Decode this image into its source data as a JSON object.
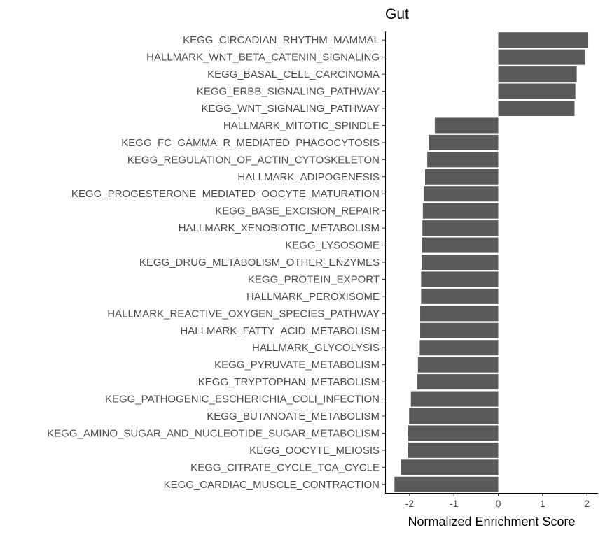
{
  "chart_data": {
    "type": "bar",
    "orientation": "horizontal",
    "title": "Gut",
    "xlabel": "Normalized Enrichment Score",
    "ylabel": "",
    "xlim": [
      -2.55,
      2.25
    ],
    "xticks": [
      -2,
      -1,
      0,
      1,
      2
    ],
    "xtick_labels": [
      "-2",
      "-1",
      "0",
      "1",
      "2"
    ],
    "grid": false,
    "bar_color": "#595959",
    "categories": [
      "KEGG_CIRCADIAN_RHYTHM_MAMMAL",
      "HALLMARK_WNT_BETA_CATENIN_SIGNALING",
      "KEGG_BASAL_CELL_CARCINOMA",
      "KEGG_ERBB_SIGNALING_PATHWAY",
      "KEGG_WNT_SIGNALING_PATHWAY",
      "HALLMARK_MITOTIC_SPINDLE",
      "KEGG_FC_GAMMA_R_MEDIATED_PHAGOCYTOSIS",
      "KEGG_REGULATION_OF_ACTIN_CYTOSKELETON",
      "HALLMARK_ADIPOGENESIS",
      "KEGG_PROGESTERONE_MEDIATED_OOCYTE_MATURATION",
      "KEGG_BASE_EXCISION_REPAIR",
      "HALLMARK_XENOBIOTIC_METABOLISM",
      "KEGG_LYSOSOME",
      "KEGG_DRUG_METABOLISM_OTHER_ENZYMES",
      "KEGG_PROTEIN_EXPORT",
      "HALLMARK_PEROXISOME",
      "HALLMARK_REACTIVE_OXYGEN_SPECIES_PATHWAY",
      "HALLMARK_FATTY_ACID_METABOLISM",
      "HALLMARK_GLYCOLYSIS",
      "KEGG_PYRUVATE_METABOLISM",
      "KEGG_TRYPTOPHAN_METABOLISM",
      "KEGG_PATHOGENIC_ESCHERICHIA_COLI_INFECTION",
      "KEGG_BUTANOATE_METABOLISM",
      "KEGG_AMINO_SUGAR_AND_NUCLEOTIDE_SUGAR_METABOLISM",
      "KEGG_OOCYTE_MEIOSIS",
      "KEGG_CITRATE_CYCLE_TCA_CYCLE",
      "KEGG_CARDIAC_MUSCLE_CONTRACTION"
    ],
    "values": [
      2.03,
      1.96,
      1.77,
      1.74,
      1.72,
      -1.43,
      -1.56,
      -1.6,
      -1.65,
      -1.68,
      -1.7,
      -1.71,
      -1.72,
      -1.73,
      -1.74,
      -1.74,
      -1.76,
      -1.76,
      -1.77,
      -1.81,
      -1.83,
      -1.97,
      -2.01,
      -2.03,
      -2.03,
      -2.19,
      -2.34
    ]
  }
}
